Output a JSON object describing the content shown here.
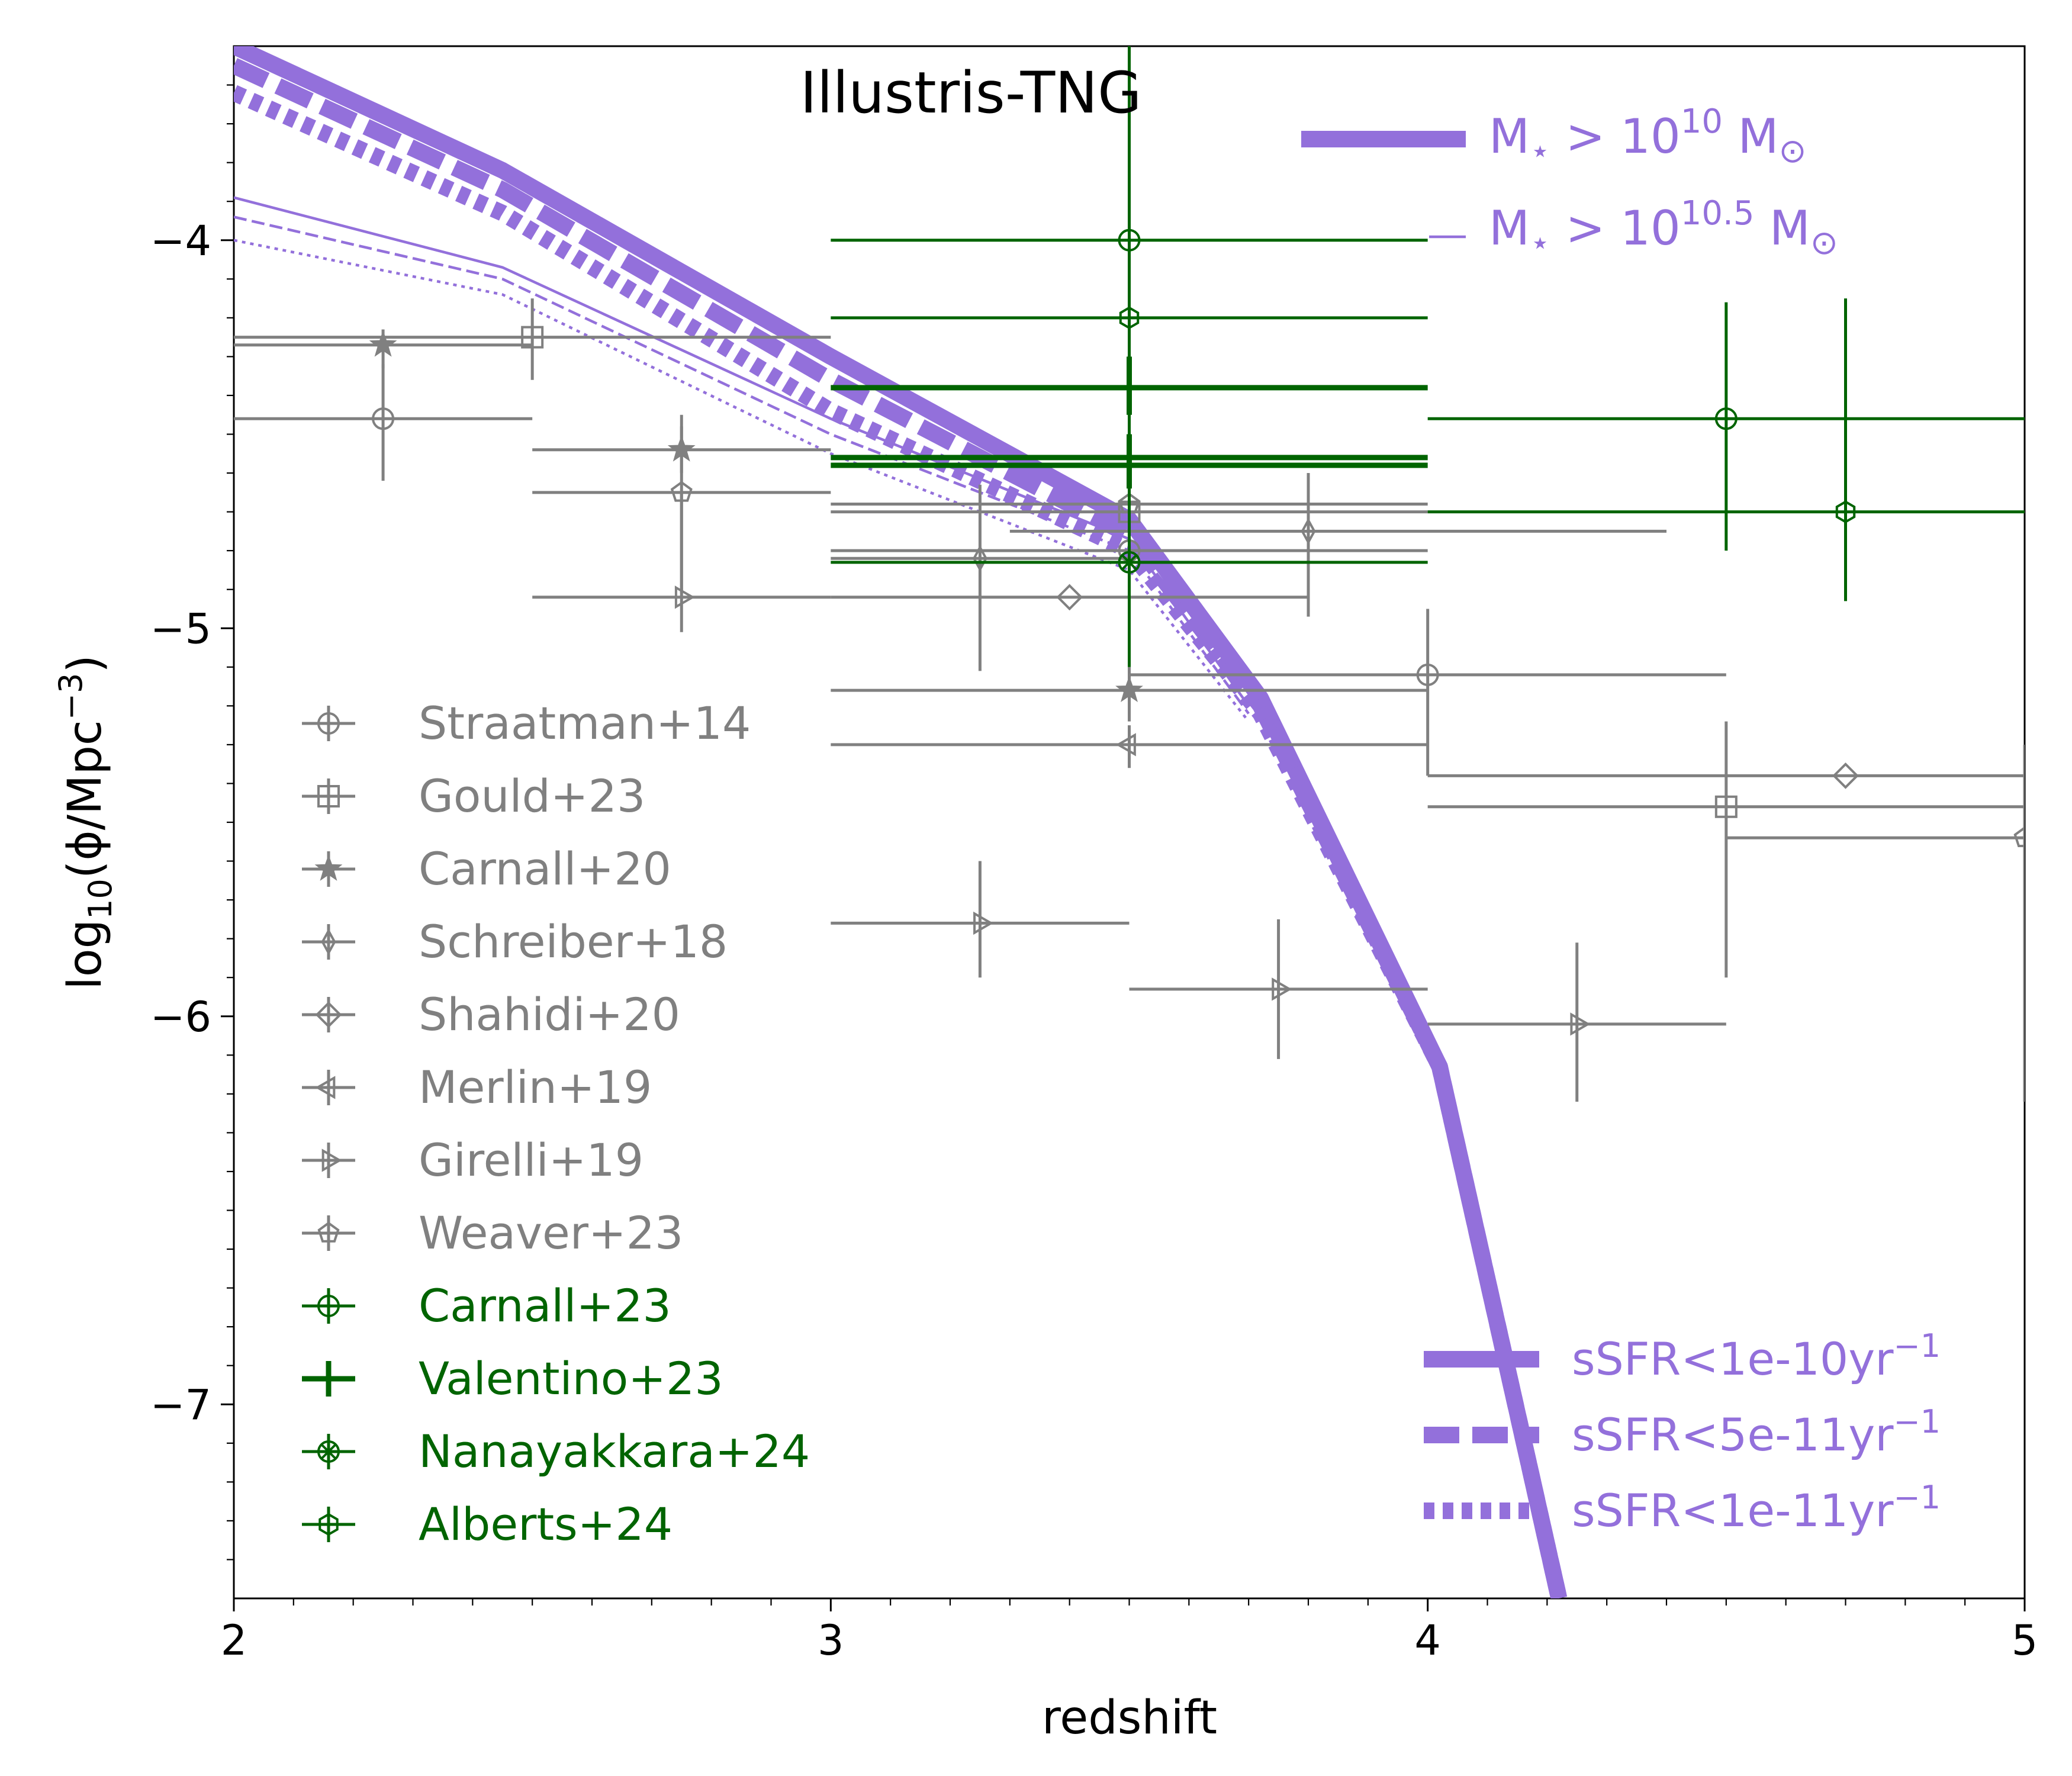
{
  "chart_data": {
    "type": "scatter",
    "title": "Illustris-TNG",
    "xlabel": "redshift",
    "ylabel_parts": {
      "pre": "log",
      "sub": "10",
      "mid": "(ϕ/Mpc",
      "sup": "−3",
      "post": ")"
    },
    "xlim": [
      2,
      5
    ],
    "ylim": [
      -7.5,
      -3.5
    ],
    "xticks": [
      2,
      3,
      4,
      5
    ],
    "xtick_labels": [
      "2",
      "3",
      "4",
      "5"
    ],
    "yticks": [
      -4,
      -5,
      -6,
      -7
    ],
    "ytick_labels": [
      "−4",
      "−5",
      "−6",
      "−7"
    ],
    "colors": {
      "tng": "#9370DB",
      "literature": "#808080",
      "jwst": "#006400"
    },
    "model_series": [
      {
        "mass": "1e10",
        "ssfr": "1e-10",
        "style": "solid",
        "x": [
          2.0,
          2.45,
          3.0,
          3.5,
          3.72,
          4.02,
          4.22
        ],
        "y": [
          -3.5,
          -3.82,
          -4.3,
          -4.72,
          -5.18,
          -6.13,
          -7.5
        ]
      },
      {
        "mass": "1e10",
        "ssfr": "5e-11",
        "style": "dashed",
        "x": [
          2.0,
          2.45,
          3.0,
          3.5,
          3.72,
          4.02,
          4.22
        ],
        "y": [
          -3.55,
          -3.87,
          -4.36,
          -4.76,
          -5.2,
          -6.13,
          -7.5
        ]
      },
      {
        "mass": "1e10",
        "ssfr": "1e-11",
        "style": "dotted",
        "x": [
          2.0,
          2.45,
          3.0,
          3.5,
          3.72,
          4.02,
          4.22
        ],
        "y": [
          -3.62,
          -3.93,
          -4.44,
          -4.8,
          -5.22,
          -6.13,
          -7.5
        ]
      },
      {
        "mass": "1e10.5",
        "ssfr": "1e-10",
        "style": "solid",
        "x": [
          2.0,
          2.45,
          3.0,
          3.5,
          3.7
        ],
        "y": [
          -3.89,
          -4.07,
          -4.46,
          -4.77,
          -5.2
        ]
      },
      {
        "mass": "1e10.5",
        "ssfr": "5e-11",
        "style": "dashed",
        "x": [
          2.0,
          2.45,
          3.0,
          3.5,
          3.7
        ],
        "y": [
          -3.94,
          -4.1,
          -4.5,
          -4.8,
          -5.22
        ]
      },
      {
        "mass": "1e10.5",
        "ssfr": "1e-11",
        "style": "dotted",
        "x": [
          2.0,
          2.45,
          3.0,
          3.5,
          3.7
        ],
        "y": [
          -4.0,
          -4.14,
          -4.55,
          -4.85,
          -5.24
        ]
      }
    ],
    "observations": [
      {
        "name": "Straatman+14",
        "group": "literature",
        "marker": "circle-plus",
        "points": [
          {
            "x": 2.25,
            "y": -4.46,
            "xlo": 2.0,
            "xhi": 2.5,
            "ylo": -4.62,
            "yhi": -4.32
          },
          {
            "x": 3.5,
            "y": -4.8,
            "xlo": 3.0,
            "xhi": 4.0,
            "ylo": -4.95,
            "yhi": -4.65
          },
          {
            "x": 4.0,
            "y": -5.12,
            "xlo": 3.5,
            "xhi": 4.5,
            "ylo": -5.38,
            "yhi": -4.95
          }
        ]
      },
      {
        "name": "Gould+23",
        "group": "literature",
        "marker": "square-plus",
        "points": [
          {
            "x": 2.5,
            "y": -4.25,
            "xlo": 2.0,
            "xhi": 3.0,
            "ylo": -4.36,
            "yhi": -4.15
          },
          {
            "x": 3.5,
            "y": -4.7,
            "xlo": 3.0,
            "xhi": 4.0,
            "ylo": -4.85,
            "yhi": -4.56
          },
          {
            "x": 4.5,
            "y": -5.46,
            "xlo": 4.0,
            "xhi": 5.0,
            "ylo": -5.9,
            "yhi": -5.24
          }
        ]
      },
      {
        "name": "Carnall+20",
        "group": "literature",
        "marker": "star",
        "points": [
          {
            "x": 2.25,
            "y": -4.27,
            "xlo": 2.0,
            "xhi": 2.5,
            "ylo": -4.33,
            "yhi": -4.23
          },
          {
            "x": 2.75,
            "y": -4.54,
            "xlo": 2.5,
            "xhi": 3.0,
            "ylo": -4.6,
            "yhi": -4.48
          },
          {
            "x": 3.5,
            "y": -5.16,
            "xlo": 3.0,
            "xhi": 4.0,
            "ylo": -5.24,
            "yhi": -5.1
          }
        ]
      },
      {
        "name": "Schreiber+18",
        "group": "literature",
        "marker": "thin-diamond",
        "points": [
          {
            "x": 3.25,
            "y": -4.82,
            "xlo": 3.0,
            "xhi": 3.5,
            "ylo": -5.11,
            "yhi": -4.63
          },
          {
            "x": 3.8,
            "y": -4.75,
            "xlo": 3.3,
            "xhi": 4.4,
            "ylo": -4.97,
            "yhi": -4.6
          }
        ]
      },
      {
        "name": "Shahidi+20",
        "group": "literature",
        "marker": "diamond",
        "points": [
          {
            "x": 3.4,
            "y": -4.92,
            "xlo": 3.0,
            "xhi": 3.8,
            "ylo": -4.92,
            "yhi": -4.92
          },
          {
            "x": 4.7,
            "y": -5.38,
            "xlo": 4.0,
            "xhi": 5.0,
            "ylo": -5.38,
            "yhi": -5.38
          }
        ]
      },
      {
        "name": "Merlin+19",
        "group": "literature",
        "marker": "triangle-left",
        "points": [
          {
            "x": 3.5,
            "y": -5.3,
            "xlo": 3.0,
            "xhi": 4.0,
            "ylo": -5.36,
            "yhi": -5.25
          }
        ]
      },
      {
        "name": "Girelli+19",
        "group": "literature",
        "marker": "triangle-right",
        "points": [
          {
            "x": 2.75,
            "y": -4.92,
            "xlo": 2.5,
            "xhi": 3.0,
            "ylo": -5.01,
            "yhi": -4.65
          },
          {
            "x": 3.25,
            "y": -5.76,
            "xlo": 3.0,
            "xhi": 3.5,
            "ylo": -5.9,
            "yhi": -5.6
          },
          {
            "x": 3.75,
            "y": -5.93,
            "xlo": 3.5,
            "xhi": 4.0,
            "ylo": -6.11,
            "yhi": -5.75
          },
          {
            "x": 4.25,
            "y": -6.02,
            "xlo": 4.0,
            "xhi": 4.5,
            "ylo": -6.22,
            "yhi": -5.81
          }
        ]
      },
      {
        "name": "Weaver+23",
        "group": "literature",
        "marker": "pentagon",
        "points": [
          {
            "x": 2.75,
            "y": -4.65,
            "xlo": 2.5,
            "xhi": 3.0,
            "ylo": -4.91,
            "yhi": -4.45
          },
          {
            "x": 3.5,
            "y": -4.68,
            "xlo": 3.0,
            "xhi": 4.0,
            "ylo": -4.75,
            "yhi": -4.62
          },
          {
            "x": 5.0,
            "y": -5.54,
            "xlo": 4.5,
            "xhi": 5.0,
            "ylo": -6.22,
            "yhi": -5.3
          }
        ]
      },
      {
        "name": "Carnall+23",
        "group": "jwst",
        "marker": "circle-plus",
        "points": [
          {
            "x": 3.5,
            "y": -4.0,
            "xlo": 3.0,
            "xhi": 4.0,
            "ylo": -5.1,
            "yhi": -3.45
          },
          {
            "x": 4.5,
            "y": -4.46,
            "xlo": 4.0,
            "xhi": 5.0,
            "ylo": -4.8,
            "yhi": -4.16
          }
        ]
      },
      {
        "name": "Valentino+23",
        "group": "jwst",
        "marker": "plus",
        "points": [
          {
            "x": 3.5,
            "y": -4.38,
            "xlo": 3.0,
            "xhi": 4.0,
            "ylo": -4.45,
            "yhi": -4.3
          },
          {
            "x": 3.5,
            "y": -4.56,
            "xlo": 3.0,
            "xhi": 4.0,
            "ylo": -4.63,
            "yhi": -4.5
          },
          {
            "x": 3.5,
            "y": -4.58,
            "xlo": 3.0,
            "xhi": 4.0,
            "ylo": -4.64,
            "yhi": -4.52
          }
        ]
      },
      {
        "name": "Nanayakkara+24",
        "group": "jwst",
        "marker": "circle-x",
        "points": [
          {
            "x": 3.5,
            "y": -4.83,
            "xlo": 3.0,
            "xhi": 4.0,
            "ylo": -4.9,
            "yhi": -4.75
          }
        ]
      },
      {
        "name": "Alberts+24",
        "group": "jwst",
        "marker": "hexagon",
        "points": [
          {
            "x": 3.5,
            "y": -4.2,
            "xlo": 3.0,
            "xhi": 4.0,
            "ylo": -4.3,
            "yhi": -4.1
          },
          {
            "x": 4.7,
            "y": -4.7,
            "xlo": 4.0,
            "xhi": 5.0,
            "ylo": -4.93,
            "yhi": -4.15
          }
        ]
      }
    ],
    "mass_legend": [
      {
        "label_pre": "M",
        "label_sub": "⋆",
        "label_mid": " > 10",
        "label_sup": "10",
        "label_post": " M",
        "label_sub2": "⊙",
        "lw": "thick"
      },
      {
        "label_pre": "M",
        "label_sub": "⋆",
        "label_mid": " > 10",
        "label_sup": "10.5",
        "label_post": " M",
        "label_sub2": "⊙",
        "lw": "thin"
      }
    ],
    "ssfr_legend": [
      {
        "label": "sSFR<1e-10yr",
        "sup": "−1",
        "style": "solid"
      },
      {
        "label": "sSFR<5e-11yr",
        "sup": "−1",
        "style": "dashed"
      },
      {
        "label": "sSFR<1e-11yr",
        "sup": "−1",
        "style": "dotted"
      }
    ],
    "legend_placement": {
      "observations": "lower-left",
      "mass": "upper-right",
      "ssfr": "lower-right"
    },
    "grid": false
  }
}
